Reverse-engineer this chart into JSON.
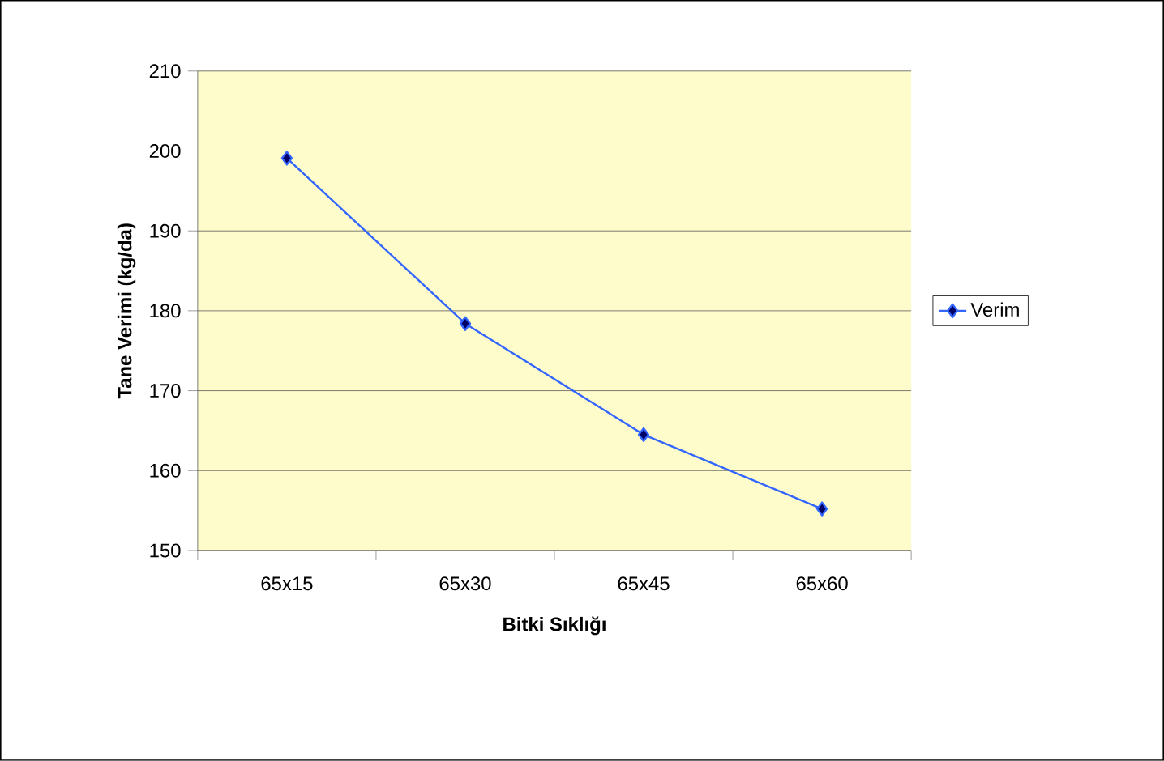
{
  "chart_data": {
    "type": "line",
    "xlabel": "Bitki Sıklığı",
    "ylabel": "Tane Verimi (kg/da)",
    "categories": [
      "65x15",
      "65x30",
      "65x45",
      "65x60"
    ],
    "series": [
      {
        "name": "Verim",
        "color": "#3366ff",
        "values": [
          199.1,
          178.4,
          164.5,
          155.2
        ]
      }
    ],
    "ylim": [
      150,
      210
    ],
    "yticks": [
      150,
      160,
      170,
      180,
      190,
      200,
      210
    ],
    "grid": "y",
    "legend": "right",
    "marker": "diamond",
    "line_style": "solid"
  }
}
